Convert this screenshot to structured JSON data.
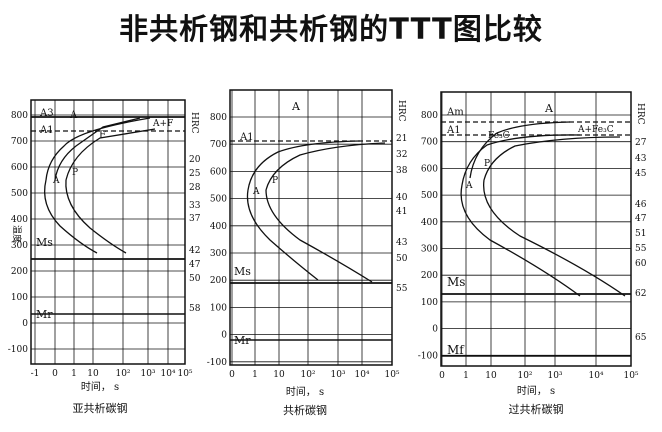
{
  "title": "非共析钢和共析钢的TTT图比较",
  "diagrams": [
    {
      "caption": "亚共析碳钢",
      "xlabel": "时间， s",
      "ylabel": "温度",
      "x_ticks": [
        "-1",
        "0",
        "1",
        "10",
        "10²",
        "10³",
        "10⁴",
        "10⁵"
      ],
      "y_ticks": [
        "800",
        "700",
        "600",
        "500",
        "400",
        "300",
        "200",
        "100",
        "0",
        "-100"
      ],
      "hrc_label": "HRC",
      "hrc_values": [
        "20",
        "25",
        "28",
        "33",
        "37",
        "42",
        "47",
        "50",
        "58"
      ],
      "lines": {
        "upper_critical": "A3",
        "lower_critical": "A1",
        "ms": "Ms",
        "mf": "Mr"
      },
      "region_labels": [
        "A",
        "A+F",
        "F",
        "A",
        "P"
      ]
    },
    {
      "caption": "共析碳钢",
      "xlabel": "时间， s",
      "ylabel": "",
      "x_ticks": [
        "0",
        "1",
        "10",
        "10²",
        "10³",
        "10⁴",
        "10⁵"
      ],
      "y_ticks": [
        "800",
        "700",
        "600",
        "500",
        "400",
        "300",
        "200",
        "100",
        "0",
        "-100"
      ],
      "hrc_label": "HRC",
      "hrc_values": [
        "21",
        "32",
        "38",
        "40",
        "41",
        "43",
        "50",
        "55"
      ],
      "lines": {
        "lower_critical": "A1",
        "ms": "Ms",
        "mf": "Mr"
      },
      "region_labels": [
        "A",
        "A",
        "P"
      ]
    },
    {
      "caption": "过共析碳钢",
      "xlabel": "时间， s",
      "ylabel": "",
      "x_ticks": [
        "0",
        "1",
        "10",
        "10²",
        "10³",
        "10⁴",
        "10⁵"
      ],
      "y_ticks": [
        "800",
        "700",
        "600",
        "500",
        "400",
        "300",
        "200",
        "100",
        "0",
        "-100"
      ],
      "hrc_label": "HRC",
      "hrc_values": [
        "27",
        "43",
        "45",
        "46",
        "47",
        "51",
        "55",
        "60",
        "62",
        "65"
      ],
      "lines": {
        "upper_critical": "Am",
        "lower_critical": "A1",
        "ms": "Ms",
        "mf": "Mf"
      },
      "region_labels": [
        "A",
        "A+Fe₃C",
        "Fe₃C",
        "A",
        "P"
      ]
    }
  ]
}
